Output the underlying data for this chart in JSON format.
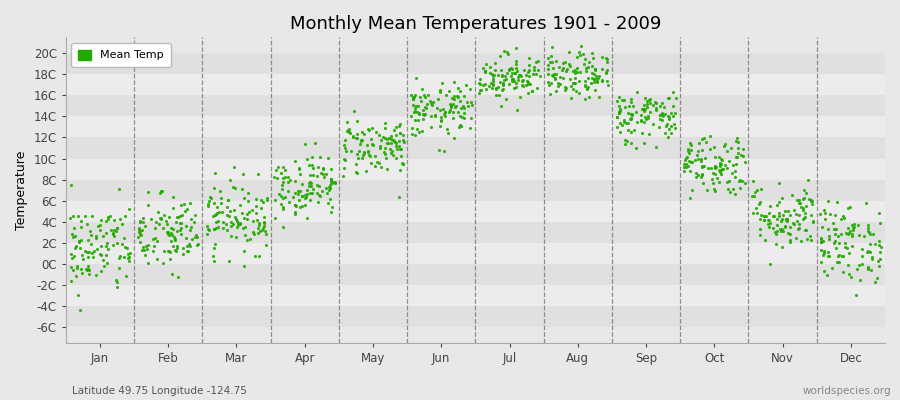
{
  "title": "Monthly Mean Temperatures 1901 - 2009",
  "ylabel": "Temperature",
  "subtitle": "Latitude 49.75 Longitude -124.75",
  "watermark": "worldspecies.org",
  "legend_label": "Mean Temp",
  "dot_color": "#22aa00",
  "background_color": "#e8e8e8",
  "stripe_colors": [
    "#e0e0e0",
    "#ececec"
  ],
  "ytick_labels": [
    "-6C",
    "-4C",
    "-2C",
    "0C",
    "2C",
    "4C",
    "6C",
    "8C",
    "10C",
    "12C",
    "14C",
    "16C",
    "18C",
    "20C"
  ],
  "ytick_values": [
    -6,
    -4,
    -2,
    0,
    2,
    4,
    6,
    8,
    10,
    12,
    14,
    16,
    18,
    20
  ],
  "ylim": [
    -7.5,
    21.5
  ],
  "months": [
    "Jan",
    "Feb",
    "Mar",
    "Apr",
    "May",
    "Jun",
    "Jul",
    "Aug",
    "Sep",
    "Oct",
    "Nov",
    "Dec"
  ],
  "monthly_means": [
    1.5,
    2.8,
    4.5,
    7.5,
    11.2,
    14.5,
    17.8,
    17.8,
    14.0,
    9.5,
    4.5,
    2.0
  ],
  "monthly_stds": [
    2.2,
    1.9,
    1.7,
    1.5,
    1.4,
    1.3,
    1.1,
    1.1,
    1.3,
    1.5,
    1.6,
    1.9
  ],
  "n_years": 109,
  "seed": 42,
  "dot_size": 5,
  "dot_alpha": 0.9,
  "title_fontsize": 13,
  "axis_fontsize": 9,
  "tick_fontsize": 8.5,
  "legend_fontsize": 8,
  "vline_color": "#666666",
  "vline_lw": 0.9,
  "spine_color": "#aaaaaa"
}
